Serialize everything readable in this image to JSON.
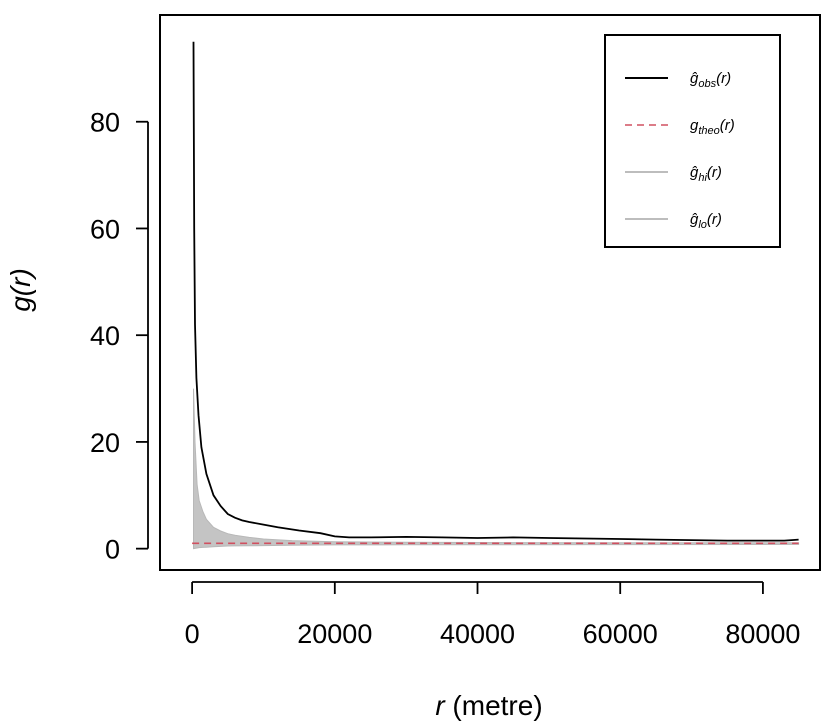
{
  "chart_data": {
    "type": "line",
    "xlabel": "r (metre)",
    "ylabel": "g(r)",
    "xlim": [
      -4500,
      88000
    ],
    "ylim": [
      -4,
      100
    ],
    "xticks": [
      "0",
      "20000",
      "40000",
      "60000",
      "80000"
    ],
    "yticks": [
      "0",
      "20",
      "40",
      "60",
      "80"
    ],
    "grid": false,
    "legend_position": "top-right",
    "legend": [
      {
        "label": "ĝobs(r)",
        "base": "ĝ",
        "sub": "obs",
        "suffix": "(r)",
        "style": "solid",
        "color": "#000000"
      },
      {
        "label": "gtheo(r)",
        "base": "g",
        "sub": "theo",
        "suffix": "(r)",
        "style": "dashed",
        "color": "#d05060"
      },
      {
        "label": "ĝhi(r)",
        "base": "ĝ",
        "sub": "hi",
        "suffix": "(r)",
        "style": "solid",
        "color": "#bdbdbd"
      },
      {
        "label": "ĝlo(r)",
        "base": "ĝ",
        "sub": "lo",
        "suffix": "(r)",
        "style": "solid",
        "color": "#bdbdbd"
      }
    ],
    "series": [
      {
        "key": "obs",
        "x": [
          200,
          300,
          400,
          600,
          900,
          1300,
          2000,
          3000,
          4000,
          5000,
          6000,
          7000,
          8000,
          10000,
          12000,
          15000,
          18000,
          20000,
          22000,
          25000,
          30000,
          35000,
          40000,
          45000,
          50000,
          55000,
          60000,
          65000,
          70000,
          75000,
          80000,
          83000,
          85000
        ],
        "y": [
          95,
          60,
          42,
          32,
          25,
          19,
          14,
          10,
          8,
          6.5,
          5.8,
          5.3,
          5,
          4.5,
          4,
          3.4,
          2.9,
          2.3,
          2.1,
          2.1,
          2.2,
          2.1,
          2.0,
          2.1,
          2.0,
          1.9,
          1.8,
          1.7,
          1.6,
          1.5,
          1.5,
          1.5,
          1.7
        ]
      },
      {
        "key": "theo",
        "x": [
          0,
          85000
        ],
        "y": [
          1,
          1
        ]
      },
      {
        "key": "hi",
        "x": [
          200,
          400,
          700,
          1000,
          1500,
          2000,
          3000,
          4000,
          5000,
          6000,
          8000,
          10000,
          14000,
          20000,
          30000,
          40000,
          60000,
          85000
        ],
        "y": [
          30,
          20,
          12,
          9,
          7,
          5.5,
          4,
          3.3,
          2.8,
          2.5,
          2.1,
          1.8,
          1.5,
          1.3,
          1.2,
          1.15,
          1.1,
          1.1
        ]
      },
      {
        "key": "lo",
        "x": [
          200,
          1000,
          5000,
          20000,
          85000
        ],
        "y": [
          0,
          0.2,
          0.5,
          0.7,
          0.8
        ]
      }
    ]
  }
}
